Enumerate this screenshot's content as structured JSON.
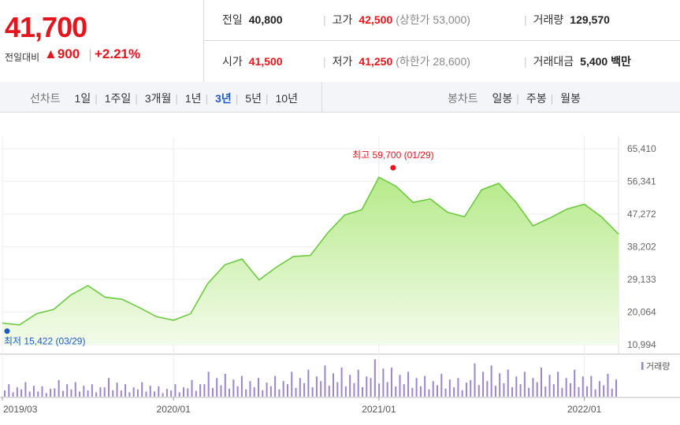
{
  "quote": {
    "price": "41,700",
    "change_label": "전일대비",
    "change_value": "▲900",
    "change_rate": "+2.21%"
  },
  "stats": {
    "prev_close": {
      "label": "전일",
      "value": "40,800"
    },
    "high": {
      "label": "고가",
      "value": "42,500",
      "sub": "(상한가 53,000)"
    },
    "volume": {
      "label": "거래량",
      "value": "129,570"
    },
    "open": {
      "label": "시가",
      "value": "41,500"
    },
    "low": {
      "label": "저가",
      "value": "41,250",
      "sub": "(하한가 28,600)"
    },
    "amount": {
      "label": "거래대금",
      "value": "5,400 백만"
    }
  },
  "line_tabs": {
    "label": "선차트",
    "items": [
      "1일",
      "1주일",
      "3개월",
      "1년",
      "3년",
      "5년",
      "10년"
    ],
    "selected": "3년"
  },
  "candle_tabs": {
    "label": "봉차트",
    "items": [
      "일봉",
      "주봉",
      "월봉"
    ]
  },
  "colors": {
    "accent_up": "#e4151c",
    "selected_tab": "#1b5bc6",
    "area_fill": "#b6ea8a",
    "line": "#6cc93f",
    "volume_bar": "#9b85cc",
    "min_marker": "#1b5bc6"
  },
  "chart_data": {
    "type": "area",
    "x_start": "2019-03",
    "x_end": "2022-03",
    "y_ticks": [
      "65,410",
      "56,341",
      "47,272",
      "38,202",
      "29,133",
      "20,064",
      "10,994"
    ],
    "ylim": [
      10994,
      65410
    ],
    "x_ticks": [
      "2019/03",
      "2020/01",
      "2021/01",
      "2022/01"
    ],
    "max_annotation": "최고 59,700 (01/29)",
    "min_annotation": "최저 15,422 (03/29)",
    "volume_legend": "거래량",
    "price_points": [
      [
        "2019-03",
        17000
      ],
      [
        "2019-04",
        16500
      ],
      [
        "2019-05",
        19600
      ],
      [
        "2019-06",
        20800
      ],
      [
        "2019-07",
        24800
      ],
      [
        "2019-08",
        27400
      ],
      [
        "2019-09",
        24200
      ],
      [
        "2019-10",
        23600
      ],
      [
        "2019-11",
        21300
      ],
      [
        "2019-12",
        18800
      ],
      [
        "2020-01",
        17800
      ],
      [
        "2020-02",
        19600
      ],
      [
        "2020-03",
        28000
      ],
      [
        "2020-04",
        33200
      ],
      [
        "2020-05",
        34800
      ],
      [
        "2020-06",
        29000
      ],
      [
        "2020-07",
        32500
      ],
      [
        "2020-08",
        35500
      ],
      [
        "2020-09",
        35800
      ],
      [
        "2020-10",
        42000
      ],
      [
        "2020-11",
        47000
      ],
      [
        "2020-12",
        48500
      ],
      [
        "2021-01",
        57500
      ],
      [
        "2021-02",
        55000
      ],
      [
        "2021-03",
        50500
      ],
      [
        "2021-04",
        51500
      ],
      [
        "2021-05",
        47800
      ],
      [
        "2021-06",
        46500
      ],
      [
        "2021-07",
        54000
      ],
      [
        "2021-08",
        55800
      ],
      [
        "2021-09",
        50600
      ],
      [
        "2021-10",
        44000
      ],
      [
        "2021-11",
        46200
      ],
      [
        "2021-12",
        48700
      ],
      [
        "2022-01",
        50000
      ],
      [
        "2022-02",
        46500
      ],
      [
        "2022-03",
        41700
      ]
    ],
    "volume_points": [
      6,
      7,
      5,
      8,
      7,
      6,
      9,
      6,
      7,
      5,
      6,
      8,
      12,
      11,
      10,
      9,
      10,
      12,
      13,
      15,
      14,
      13,
      18,
      14,
      12,
      10,
      11,
      9,
      16,
      15,
      13,
      12,
      14,
      12,
      13,
      10,
      11
    ]
  }
}
